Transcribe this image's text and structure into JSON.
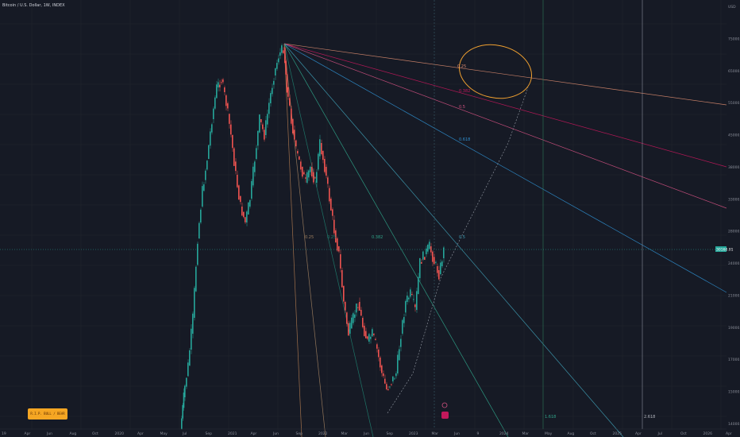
{
  "header": {
    "title": "Bitcoin / U.S. Dollar, 1W, INDEX"
  },
  "badge": {
    "label": "R.I.P. BULL / BEAR"
  },
  "colors": {
    "background": "#161a25",
    "grid": "#22262f",
    "up": "#26a69a",
    "down": "#ef5350",
    "fan_levels": [
      "#d98a6e",
      "#c2185b",
      "#d05080",
      "#2f8fcf",
      "#3f9fb6",
      "#2fa58a",
      "#1f7f6f",
      "#a08060",
      "#b07a50"
    ],
    "ellipse": "#f0a030",
    "price_line": "#26a69a"
  },
  "chart_data": {
    "type": "candlestick",
    "title": "Bitcoin / U.S. Dollar, 1W, INDEX",
    "y_axis": {
      "unit": "USD",
      "tick_labels": [
        "USD",
        "75000.00",
        "65000.00",
        "55000.00",
        "45000.00",
        "38000.00",
        "33000.00",
        "28000.00",
        "24000.00",
        "21000.00",
        "19000.00",
        "17000.00",
        "15000.00",
        "14000.00"
      ]
    },
    "x_axis": {
      "tick_labels": [
        "19",
        "Apr",
        "Jun",
        "Aug",
        "Oct",
        "2020",
        "Apr",
        "May",
        "Jul",
        "Sep",
        "2021",
        "Apr",
        "Jun",
        "Sep",
        "2022",
        "Mar",
        "Jun",
        "Sep",
        "2023",
        "Mar",
        "Jun",
        "9",
        "2024",
        "Mar",
        "May",
        "Aug",
        "Oct",
        "2025",
        "Apr",
        "Jul",
        "Oct",
        "2026",
        "Apr"
      ]
    },
    "current_price": {
      "value": "30160.01",
      "label": "Bitcoin"
    },
    "fib_fan": {
      "origin": {
        "date": "2021-11",
        "price": 69000
      },
      "levels": [
        "0.25",
        "0.382",
        "0.5",
        "0.618",
        "0.5",
        "0.382",
        "0.25"
      ]
    },
    "vertical_markers": [
      "1.618",
      "2.618"
    ],
    "grid": true
  }
}
